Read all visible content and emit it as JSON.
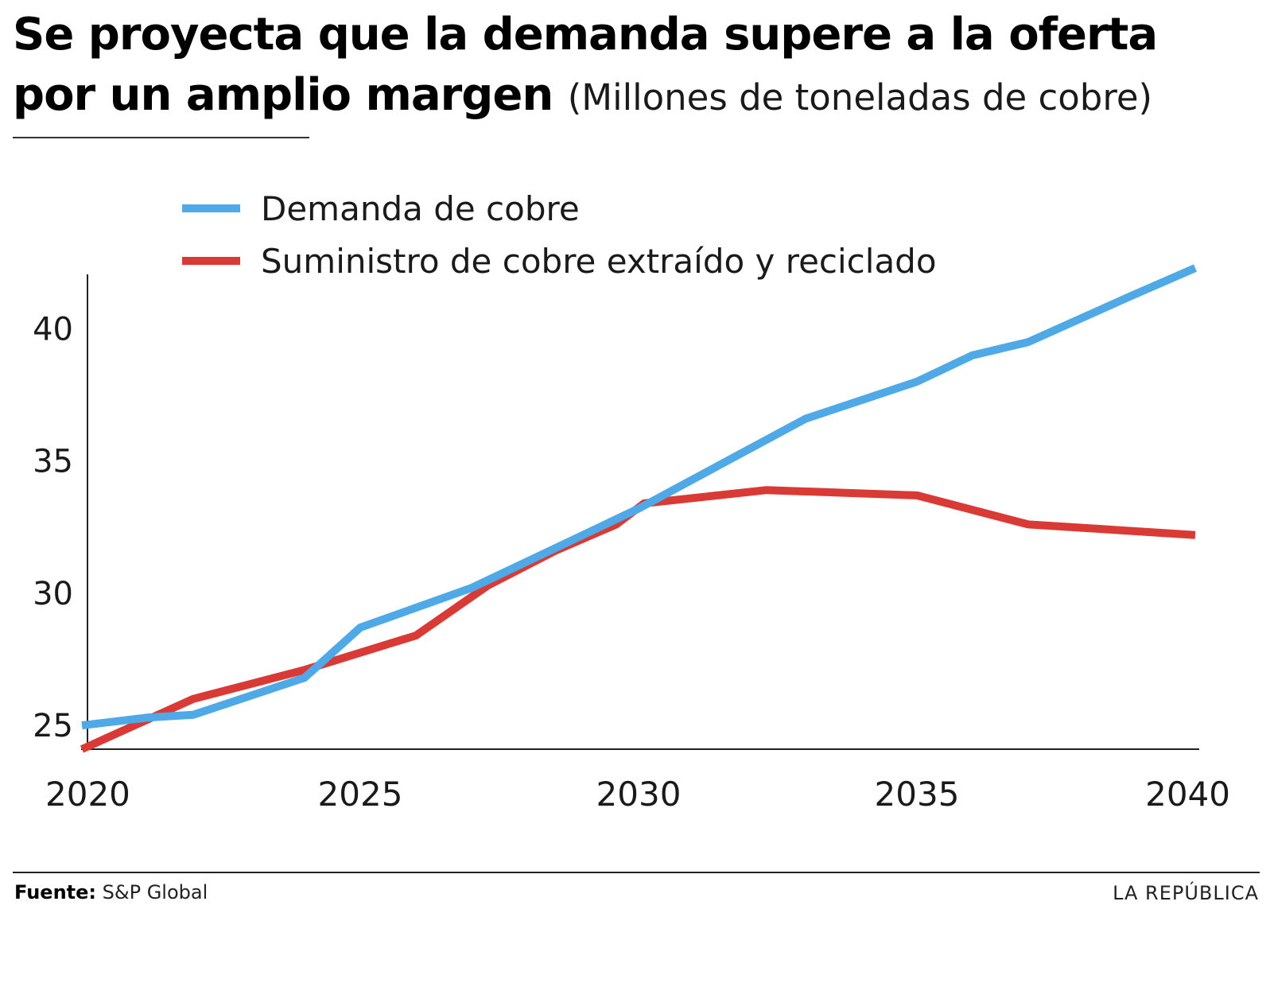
{
  "header": {
    "title": "Se proyecta que la demanda supere a la oferta por un amplio margen",
    "subtitle": "(Millones de toneladas de cobre)"
  },
  "footer": {
    "source_label": "Fuente:",
    "source_value": "S&P Global",
    "brand": "LA REPÚBLICA"
  },
  "chart_data": {
    "type": "line",
    "title": "Se proyecta que la demanda supere a la oferta por un amplio margen",
    "subtitle": "(Millones de toneladas de cobre)",
    "xlim": [
      2020,
      2040
    ],
    "ylim": [
      24.1,
      42.3
    ],
    "x_ticks": [
      2020,
      2025,
      2030,
      2035,
      2040
    ],
    "y_ticks": [
      25,
      30,
      35,
      40
    ],
    "grid": false,
    "legend_position": "top-left",
    "series": [
      {
        "name": "Demanda de cobre",
        "color": "#4fa9e6",
        "x": [
          2020,
          2021.2,
          2022,
          2024,
          2025,
          2027,
          2030,
          2033,
          2035,
          2036,
          2037,
          2038.8,
          2040
        ],
        "y": [
          25.0,
          25.3,
          25.4,
          26.8,
          28.7,
          30.2,
          33.2,
          36.6,
          38.0,
          39.0,
          39.5,
          41.2,
          42.3
        ]
      },
      {
        "name": "Suministro de cobre extraído y reciclado",
        "color": "#d93a36",
        "x": [
          2020,
          2022,
          2024,
          2026,
          2027.3,
          2028.5,
          2029.6,
          2030.1,
          2032.3,
          2035,
          2037,
          2040
        ],
        "y": [
          24.1,
          26.0,
          27.1,
          28.4,
          30.3,
          31.6,
          32.6,
          33.4,
          33.9,
          33.7,
          32.6,
          32.2
        ]
      }
    ]
  }
}
